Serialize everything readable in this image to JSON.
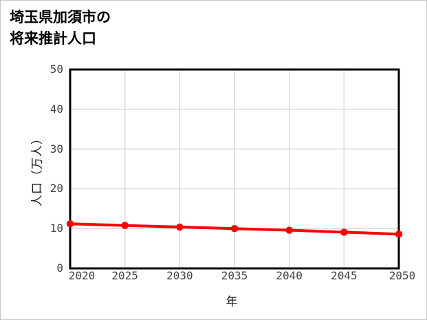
{
  "page": {
    "background": "#ffffff",
    "border_color": "#c9c9c9"
  },
  "title": {
    "line1": "埼玉県加須市の",
    "line2": "将来推計人口"
  },
  "chart_data": {
    "type": "line",
    "title": "埼玉県加須市の将来推計人口",
    "xlabel": "年",
    "ylabel": "人口（万人）",
    "x": [
      2020,
      2025,
      2030,
      2035,
      2040,
      2045,
      2050
    ],
    "series": [
      {
        "name": "将来推計人口",
        "values": [
          11.2,
          10.8,
          10.4,
          10.0,
          9.6,
          9.1,
          8.6
        ],
        "color": "#ff0000"
      }
    ],
    "x_tick_labels": [
      "2020",
      "2025",
      "2030",
      "2035",
      "2040",
      "2045",
      "2050"
    ],
    "y_tick_labels": [
      "0",
      "10",
      "20",
      "30",
      "40",
      "50"
    ],
    "xlim": [
      2020,
      2050
    ],
    "ylim": [
      0,
      50
    ],
    "grid": true,
    "legend": "none",
    "colors": {
      "gridline": "#d9d9d9",
      "frame": "#000000",
      "tick_label": "#404040",
      "text": "#000000"
    }
  }
}
